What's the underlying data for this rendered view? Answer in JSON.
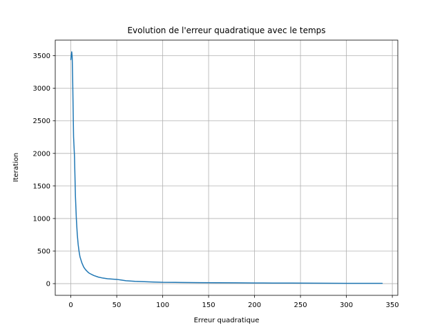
{
  "chart_data": {
    "type": "line",
    "title": "Evolution de l'erreur quadratique avec le temps",
    "xlabel": "Erreur quadratique",
    "ylabel": "Iteration",
    "xlim": [
      -16.95,
      355.95
    ],
    "ylim": [
      -180,
      3740
    ],
    "xticks": [
      0,
      50,
      100,
      150,
      200,
      250,
      300,
      350
    ],
    "yticks": [
      0,
      500,
      1000,
      1500,
      2000,
      2500,
      3000,
      3500
    ],
    "grid": true,
    "line_color": "#1f77b4",
    "series": [
      {
        "x": [
          0,
          0.5,
          1,
          1.5,
          2,
          2.5,
          3,
          4,
          5,
          6,
          7,
          8,
          9,
          10,
          12,
          14,
          16,
          18,
          20,
          25,
          30,
          35,
          40,
          45,
          50,
          55,
          60,
          70,
          80,
          90,
          100,
          120,
          140,
          160,
          180,
          200,
          220,
          240,
          260,
          280,
          300,
          320,
          339
        ],
        "values": [
          3440,
          3510,
          3560,
          3480,
          3150,
          2700,
          2250,
          1950,
          1350,
          1000,
          760,
          600,
          490,
          410,
          320,
          255,
          215,
          185,
          160,
          125,
          100,
          85,
          75,
          70,
          65,
          55,
          45,
          35,
          30,
          25,
          20,
          18,
          15,
          14,
          12,
          10,
          9,
          8,
          7,
          6,
          5,
          4,
          4
        ]
      }
    ]
  }
}
